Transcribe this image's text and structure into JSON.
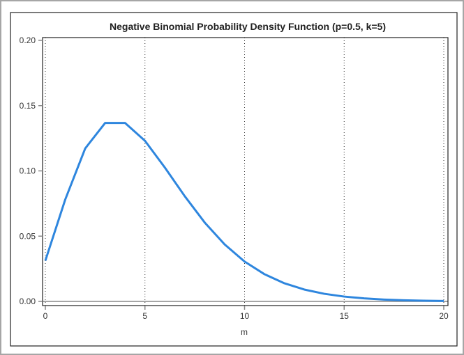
{
  "chart_data": {
    "type": "line",
    "title": "Negative Binomial Probability Density Function (p=0.5, k=5)",
    "xlabel": "m",
    "ylabel": "",
    "xlim": [
      0,
      20
    ],
    "ylim": [
      0,
      0.2
    ],
    "xticks": [
      "0",
      "5",
      "10",
      "15",
      "20"
    ],
    "yticks": [
      "0.00",
      "0.05",
      "0.10",
      "0.15",
      "0.20"
    ],
    "grid": "vertical dotted at x ticks",
    "line_color": "#2e86de",
    "x": [
      0,
      1,
      2,
      3,
      4,
      5,
      6,
      7,
      8,
      9,
      10,
      11,
      12,
      13,
      14,
      15,
      16,
      17,
      18,
      19,
      20
    ],
    "y": [
      0.03125,
      0.07813,
      0.11719,
      0.13672,
      0.13672,
      0.12305,
      0.10254,
      0.08057,
      0.06042,
      0.04364,
      0.03055,
      0.02083,
      0.01389,
      0.00908,
      0.00584,
      0.0037,
      0.00231,
      0.00143,
      0.00087,
      0.00053,
      0.00032
    ]
  }
}
